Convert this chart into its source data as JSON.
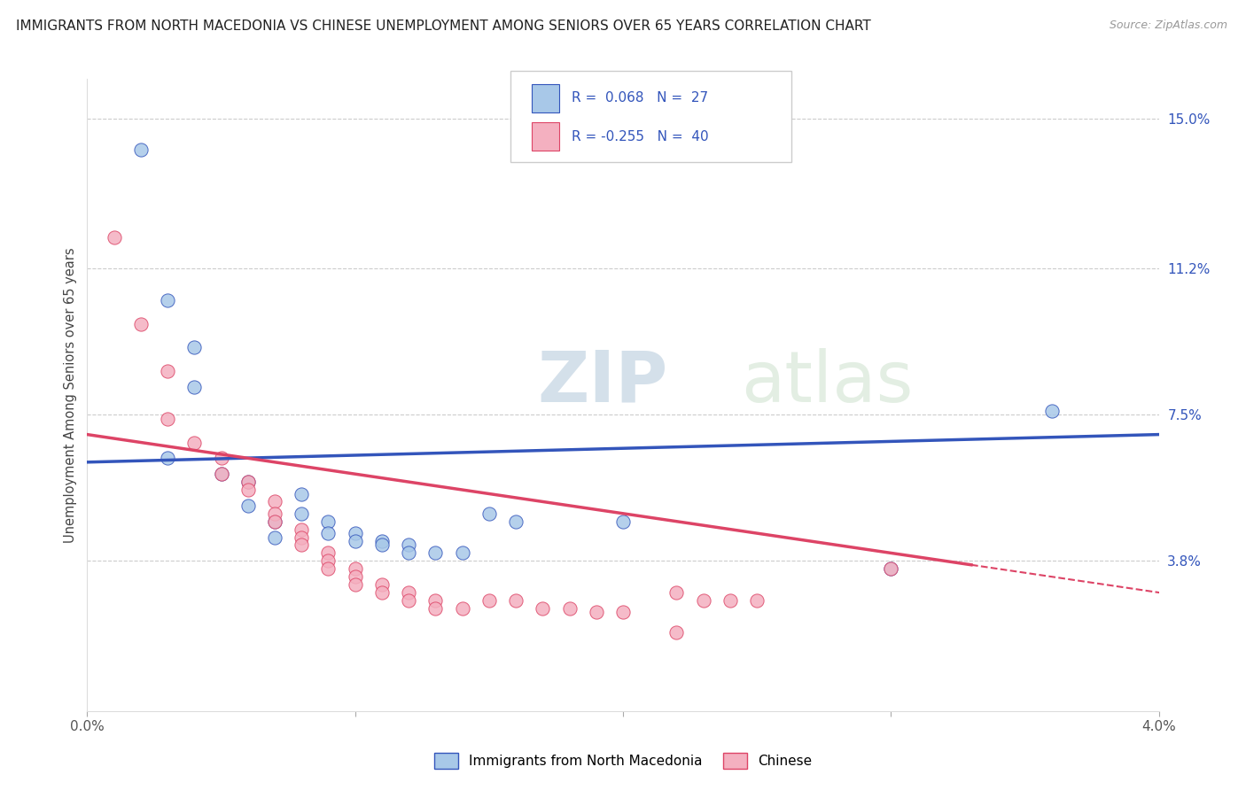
{
  "title": "IMMIGRANTS FROM NORTH MACEDONIA VS CHINESE UNEMPLOYMENT AMONG SENIORS OVER 65 YEARS CORRELATION CHART",
  "source": "Source: ZipAtlas.com",
  "ylabel": "Unemployment Among Seniors over 65 years",
  "xlim": [
    0.0,
    0.04
  ],
  "ylim": [
    0.0,
    0.16
  ],
  "xticks": [
    0.0,
    0.01,
    0.02,
    0.03,
    0.04
  ],
  "xticklabels": [
    "0.0%",
    "",
    "",
    "",
    "4.0%"
  ],
  "yticks_right": [
    0.038,
    0.075,
    0.112,
    0.15
  ],
  "yticklabels_right": [
    "3.8%",
    "7.5%",
    "11.2%",
    "15.0%"
  ],
  "color_blue": "#a8c8e8",
  "color_pink": "#f4b0c0",
  "line_blue": "#3355bb",
  "line_pink": "#dd4466",
  "watermark_zip": "ZIP",
  "watermark_atlas": "atlas",
  "scatter_blue": [
    [
      0.002,
      0.142
    ],
    [
      0.003,
      0.104
    ],
    [
      0.004,
      0.092
    ],
    [
      0.004,
      0.082
    ],
    [
      0.003,
      0.064
    ],
    [
      0.005,
      0.06
    ],
    [
      0.006,
      0.058
    ],
    [
      0.006,
      0.052
    ],
    [
      0.007,
      0.048
    ],
    [
      0.007,
      0.044
    ],
    [
      0.008,
      0.055
    ],
    [
      0.008,
      0.05
    ],
    [
      0.009,
      0.048
    ],
    [
      0.009,
      0.045
    ],
    [
      0.01,
      0.045
    ],
    [
      0.01,
      0.043
    ],
    [
      0.011,
      0.043
    ],
    [
      0.011,
      0.042
    ],
    [
      0.012,
      0.042
    ],
    [
      0.012,
      0.04
    ],
    [
      0.013,
      0.04
    ],
    [
      0.014,
      0.04
    ],
    [
      0.015,
      0.05
    ],
    [
      0.016,
      0.048
    ],
    [
      0.02,
      0.048
    ],
    [
      0.03,
      0.036
    ],
    [
      0.036,
      0.076
    ]
  ],
  "scatter_pink": [
    [
      0.001,
      0.12
    ],
    [
      0.002,
      0.098
    ],
    [
      0.003,
      0.086
    ],
    [
      0.003,
      0.074
    ],
    [
      0.004,
      0.068
    ],
    [
      0.005,
      0.064
    ],
    [
      0.005,
      0.06
    ],
    [
      0.006,
      0.058
    ],
    [
      0.006,
      0.056
    ],
    [
      0.007,
      0.053
    ],
    [
      0.007,
      0.05
    ],
    [
      0.007,
      0.048
    ],
    [
      0.008,
      0.046
    ],
    [
      0.008,
      0.044
    ],
    [
      0.008,
      0.042
    ],
    [
      0.009,
      0.04
    ],
    [
      0.009,
      0.038
    ],
    [
      0.009,
      0.036
    ],
    [
      0.01,
      0.036
    ],
    [
      0.01,
      0.034
    ],
    [
      0.01,
      0.032
    ],
    [
      0.011,
      0.032
    ],
    [
      0.011,
      0.03
    ],
    [
      0.012,
      0.03
    ],
    [
      0.012,
      0.028
    ],
    [
      0.013,
      0.028
    ],
    [
      0.013,
      0.026
    ],
    [
      0.014,
      0.026
    ],
    [
      0.015,
      0.028
    ],
    [
      0.016,
      0.028
    ],
    [
      0.017,
      0.026
    ],
    [
      0.018,
      0.026
    ],
    [
      0.019,
      0.025
    ],
    [
      0.02,
      0.025
    ],
    [
      0.022,
      0.03
    ],
    [
      0.023,
      0.028
    ],
    [
      0.024,
      0.028
    ],
    [
      0.025,
      0.028
    ],
    [
      0.03,
      0.036
    ],
    [
      0.022,
      0.02
    ]
  ],
  "blue_line_y0": 0.063,
  "blue_line_y1": 0.07,
  "pink_line_y0": 0.07,
  "pink_line_y1": 0.03
}
